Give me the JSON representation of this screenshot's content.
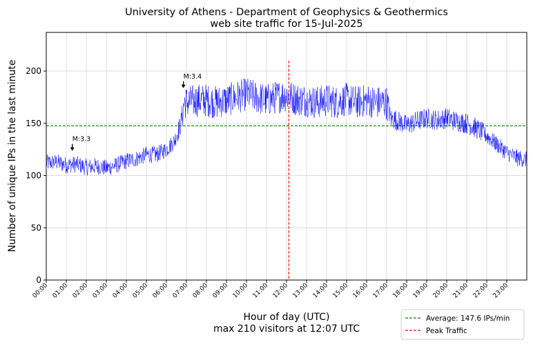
{
  "chart_data": {
    "type": "line",
    "title": "University of Athens - Department of Geophysics & Geothermics",
    "subtitle": "web site traffic for 15-Jul-2025",
    "xlabel": "Hour of day (UTC)",
    "xlabel_note": "max 210 visitors at 12:07 UTC",
    "ylabel": "Number of unique IPs in the last minute",
    "xlim": [
      0,
      24
    ],
    "ylim": [
      0,
      237
    ],
    "yticks": [
      0,
      50,
      100,
      150,
      200
    ],
    "xticks": [
      "00:00",
      "01:00",
      "02:00",
      "03:00",
      "04:00",
      "05:00",
      "06:00",
      "07:00",
      "08:00",
      "09:00",
      "10:00",
      "11:00",
      "12:00",
      "13:00",
      "14:00",
      "15:00",
      "16:00",
      "17:00",
      "18:00",
      "19:00",
      "20:00",
      "21:00",
      "22:00",
      "23:00"
    ],
    "grid": true,
    "legend_position": "below-right",
    "series": [
      {
        "color": "#0000ff",
        "x": [
          0,
          0.5,
          1,
          1.5,
          2,
          2.5,
          3,
          3.5,
          4,
          4.5,
          5,
          5.5,
          6,
          6.4,
          6.7,
          6.9,
          7,
          7.5,
          8,
          8.5,
          9,
          9.5,
          10,
          10.5,
          11,
          11.5,
          12,
          12.5,
          13,
          13.5,
          14,
          14.5,
          15,
          15.5,
          16,
          16.5,
          17,
          17.2,
          17.5,
          18,
          18.5,
          19,
          19.5,
          20,
          20.5,
          21,
          21.5,
          22,
          22.5,
          23,
          23.5,
          24
        ],
        "y": [
          112,
          113,
          110,
          111,
          108,
          109,
          107,
          110,
          114,
          116,
          120,
          120,
          125,
          133,
          148,
          170,
          170,
          172,
          172,
          170,
          172,
          175,
          178,
          175,
          172,
          175,
          177,
          173,
          172,
          170,
          172,
          170,
          173,
          170,
          172,
          170,
          170,
          155,
          153,
          148,
          152,
          155,
          153,
          155,
          152,
          150,
          145,
          138,
          130,
          122,
          117,
          115
        ]
      }
    ],
    "reference_lines": [
      {
        "orientation": "horizontal",
        "value": 147.6,
        "color": "#008000",
        "label": "Average: 147.6 IPs/min"
      },
      {
        "orientation": "vertical",
        "value": 12.1167,
        "y_top": 210,
        "color": "#ff0000",
        "label": "Peak Traffic"
      }
    ],
    "annotations": [
      {
        "text": "M:3.3",
        "x": 1.3,
        "y": 125
      },
      {
        "text": "M:3.4",
        "x": 6.85,
        "y": 185
      }
    ]
  }
}
